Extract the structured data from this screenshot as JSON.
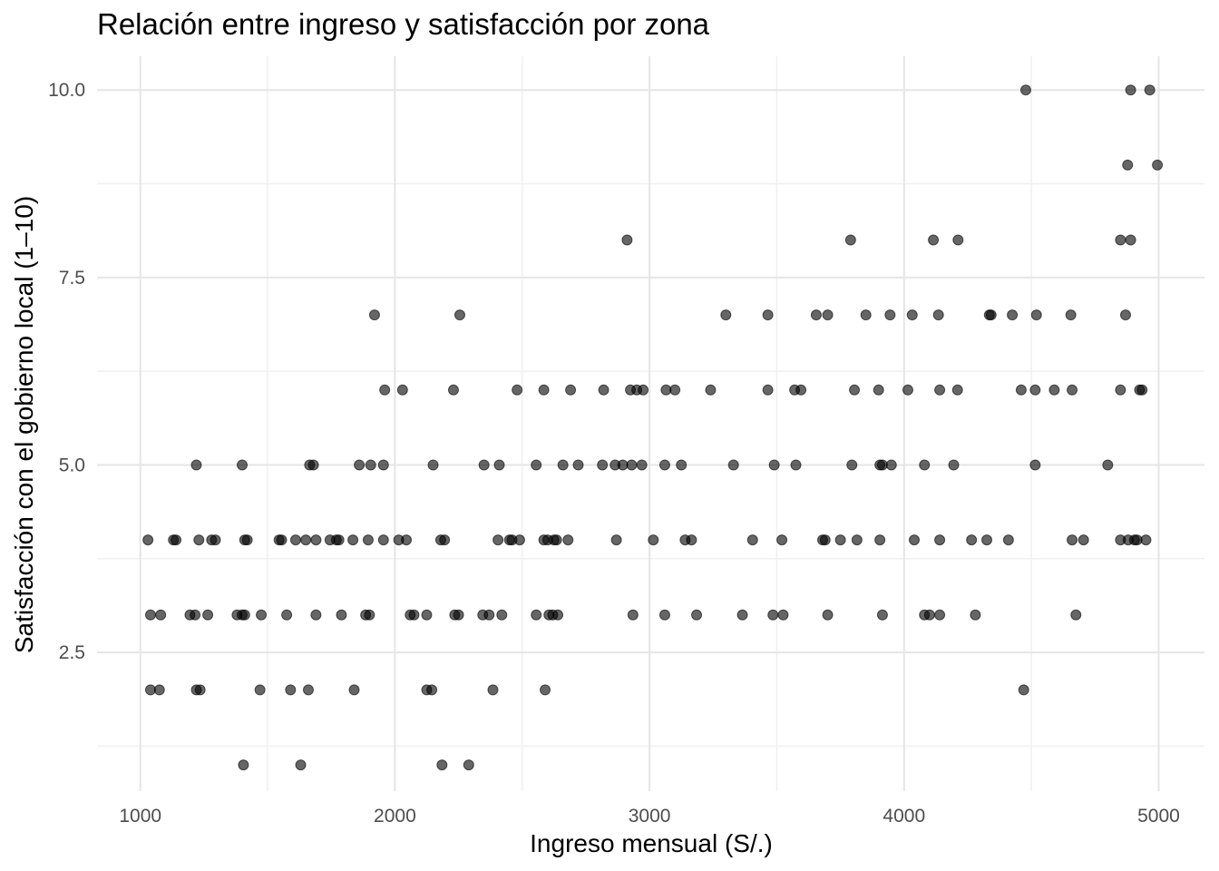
{
  "chart_data": {
    "type": "scatter",
    "title": "Relación entre ingreso y satisfacción por zona",
    "xlabel": "Ingreso mensual (S/.)",
    "ylabel": "Satisfacción con el gobierno local (1–10)",
    "xlim": [
      830,
      5180
    ],
    "ylim": [
      0.65,
      10.45
    ],
    "x_ticks": [
      1000,
      2000,
      3000,
      4000,
      5000
    ],
    "x_tick_labels": [
      "1000",
      "2000",
      "3000",
      "4000",
      "5000"
    ],
    "y_ticks": [
      2.5,
      5.0,
      7.5,
      10.0
    ],
    "y_tick_labels": [
      "2.5",
      "5.0",
      "7.5",
      "10.0"
    ],
    "grid": true,
    "point_color": "#000000",
    "points": [
      [
        4478,
        10
      ],
      [
        4890,
        10
      ],
      [
        4965,
        10
      ],
      [
        4878,
        9
      ],
      [
        4995,
        9
      ],
      [
        2912,
        8
      ],
      [
        3790,
        8
      ],
      [
        4115,
        8
      ],
      [
        4212,
        8
      ],
      [
        4850,
        8
      ],
      [
        4890,
        8
      ],
      [
        1920,
        7
      ],
      [
        2255,
        7
      ],
      [
        3300,
        7
      ],
      [
        3465,
        7
      ],
      [
        3655,
        7
      ],
      [
        3700,
        7
      ],
      [
        3850,
        7
      ],
      [
        3945,
        7
      ],
      [
        4032,
        7
      ],
      [
        4135,
        7
      ],
      [
        4335,
        7
      ],
      [
        4342,
        7
      ],
      [
        4425,
        7
      ],
      [
        4520,
        7
      ],
      [
        4655,
        7
      ],
      [
        4870,
        7
      ],
      [
        1960,
        6
      ],
      [
        2030,
        6
      ],
      [
        2230,
        6
      ],
      [
        2480,
        6
      ],
      [
        2585,
        6
      ],
      [
        2690,
        6
      ],
      [
        2820,
        6
      ],
      [
        2925,
        6
      ],
      [
        2950,
        6
      ],
      [
        2975,
        6
      ],
      [
        3065,
        6
      ],
      [
        3100,
        6
      ],
      [
        3240,
        6
      ],
      [
        3465,
        6
      ],
      [
        3570,
        6
      ],
      [
        3595,
        6
      ],
      [
        3805,
        6
      ],
      [
        3900,
        6
      ],
      [
        4015,
        6
      ],
      [
        4140,
        6
      ],
      [
        4210,
        6
      ],
      [
        4460,
        6
      ],
      [
        4515,
        6
      ],
      [
        4590,
        6
      ],
      [
        4660,
        6
      ],
      [
        4850,
        6
      ],
      [
        4925,
        6
      ],
      [
        4935,
        6
      ],
      [
        1220,
        5
      ],
      [
        1400,
        5
      ],
      [
        1665,
        5
      ],
      [
        1680,
        5
      ],
      [
        1860,
        5
      ],
      [
        1905,
        5
      ],
      [
        1955,
        5
      ],
      [
        2150,
        5
      ],
      [
        2350,
        5
      ],
      [
        2410,
        5
      ],
      [
        2555,
        5
      ],
      [
        2660,
        5
      ],
      [
        2720,
        5
      ],
      [
        2815,
        5
      ],
      [
        2865,
        5
      ],
      [
        2895,
        5
      ],
      [
        2930,
        5
      ],
      [
        2970,
        5
      ],
      [
        3060,
        5
      ],
      [
        3125,
        5
      ],
      [
        3330,
        5
      ],
      [
        3490,
        5
      ],
      [
        3575,
        5
      ],
      [
        3795,
        5
      ],
      [
        3905,
        5
      ],
      [
        3915,
        5
      ],
      [
        3950,
        5
      ],
      [
        4080,
        5
      ],
      [
        4195,
        5
      ],
      [
        4515,
        5
      ],
      [
        4800,
        5
      ],
      [
        1030,
        4
      ],
      [
        1130,
        4
      ],
      [
        1140,
        4
      ],
      [
        1230,
        4
      ],
      [
        1280,
        4
      ],
      [
        1295,
        4
      ],
      [
        1410,
        4
      ],
      [
        1420,
        4
      ],
      [
        1545,
        4
      ],
      [
        1555,
        4
      ],
      [
        1610,
        4
      ],
      [
        1650,
        4
      ],
      [
        1690,
        4
      ],
      [
        1745,
        4
      ],
      [
        1770,
        4
      ],
      [
        1780,
        4
      ],
      [
        1835,
        4
      ],
      [
        1895,
        4
      ],
      [
        1955,
        4
      ],
      [
        2015,
        4
      ],
      [
        2045,
        4
      ],
      [
        2180,
        4
      ],
      [
        2195,
        4
      ],
      [
        2405,
        4
      ],
      [
        2450,
        4
      ],
      [
        2460,
        4
      ],
      [
        2490,
        4
      ],
      [
        2585,
        4
      ],
      [
        2600,
        4
      ],
      [
        2625,
        4
      ],
      [
        2635,
        4
      ],
      [
        2680,
        4
      ],
      [
        2870,
        4
      ],
      [
        3015,
        4
      ],
      [
        3140,
        4
      ],
      [
        3165,
        4
      ],
      [
        3405,
        4
      ],
      [
        3520,
        4
      ],
      [
        3680,
        4
      ],
      [
        3690,
        4
      ],
      [
        3750,
        4
      ],
      [
        3815,
        4
      ],
      [
        3905,
        4
      ],
      [
        4040,
        4
      ],
      [
        4140,
        4
      ],
      [
        4265,
        4
      ],
      [
        4325,
        4
      ],
      [
        4410,
        4
      ],
      [
        4660,
        4
      ],
      [
        4705,
        4
      ],
      [
        4850,
        4
      ],
      [
        4880,
        4
      ],
      [
        4905,
        4
      ],
      [
        4915,
        4
      ],
      [
        4950,
        4
      ],
      [
        1040,
        3
      ],
      [
        1080,
        3
      ],
      [
        1195,
        3
      ],
      [
        1215,
        3
      ],
      [
        1265,
        3
      ],
      [
        1380,
        3
      ],
      [
        1400,
        3
      ],
      [
        1410,
        3
      ],
      [
        1475,
        3
      ],
      [
        1575,
        3
      ],
      [
        1690,
        3
      ],
      [
        1790,
        3
      ],
      [
        1885,
        3
      ],
      [
        1900,
        3
      ],
      [
        2060,
        3
      ],
      [
        2075,
        3
      ],
      [
        2125,
        3
      ],
      [
        2235,
        3
      ],
      [
        2250,
        3
      ],
      [
        2345,
        3
      ],
      [
        2370,
        3
      ],
      [
        2420,
        3
      ],
      [
        2555,
        3
      ],
      [
        2605,
        3
      ],
      [
        2620,
        3
      ],
      [
        2640,
        3
      ],
      [
        2935,
        3
      ],
      [
        3060,
        3
      ],
      [
        3185,
        3
      ],
      [
        3365,
        3
      ],
      [
        3485,
        3
      ],
      [
        3525,
        3
      ],
      [
        3700,
        3
      ],
      [
        3915,
        3
      ],
      [
        4080,
        3
      ],
      [
        4100,
        3
      ],
      [
        4140,
        3
      ],
      [
        4280,
        3
      ],
      [
        4675,
        3
      ],
      [
        1040,
        2
      ],
      [
        1075,
        2
      ],
      [
        1220,
        2
      ],
      [
        1235,
        2
      ],
      [
        1470,
        2
      ],
      [
        1590,
        2
      ],
      [
        1660,
        2
      ],
      [
        1840,
        2
      ],
      [
        2125,
        2
      ],
      [
        2145,
        2
      ],
      [
        2385,
        2
      ],
      [
        2590,
        2
      ],
      [
        4470,
        2
      ],
      [
        1405,
        1
      ],
      [
        1630,
        1
      ],
      [
        2185,
        1
      ],
      [
        2290,
        1
      ]
    ]
  }
}
